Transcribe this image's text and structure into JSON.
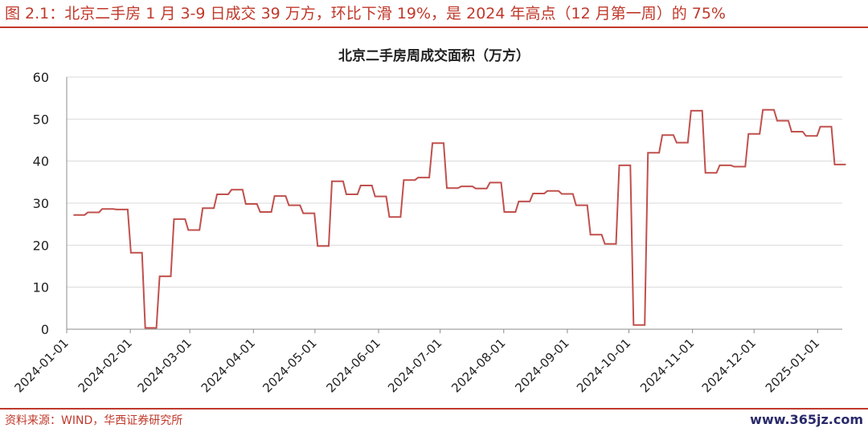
{
  "figure_title": "图 2.1：北京二手房 1 月 3-9 日成交 39 万方，环比下滑 19%，是 2024 年高点（12 月第一周）的 75%",
  "source": "资料来源：WIND，华西证券研究所",
  "watermark": "www.365jz.com",
  "colors": {
    "accent": "#c0392b",
    "line": "#c0504d",
    "grid": "#d9d9d9"
  },
  "chart_data": {
    "type": "line",
    "title": "北京二手房周成交面积（万方）",
    "xlabel": "",
    "ylabel": "",
    "ylim": [
      0,
      60
    ],
    "yticks": [
      0,
      10,
      20,
      30,
      40,
      50,
      60
    ],
    "xlim": [
      "2024-01-01",
      "2025-01-13"
    ],
    "xticks": [
      "2024-01-01",
      "2024-02-01",
      "2024-03-01",
      "2024-04-01",
      "2024-05-01",
      "2024-06-01",
      "2024-07-01",
      "2024-08-01",
      "2024-09-01",
      "2024-10-01",
      "2024-11-01",
      "2024-12-01",
      "2025-01-01"
    ],
    "grid": "horizontal",
    "series": [
      {
        "x": [
          "2024-01-07",
          "2024-01-14",
          "2024-01-21",
          "2024-01-28",
          "2024-02-04",
          "2024-02-11",
          "2024-02-18",
          "2024-02-25",
          "2024-03-03",
          "2024-03-10",
          "2024-03-17",
          "2024-03-24",
          "2024-03-31",
          "2024-04-07",
          "2024-04-14",
          "2024-04-21",
          "2024-04-28",
          "2024-05-05",
          "2024-05-12",
          "2024-05-19",
          "2024-05-26",
          "2024-06-02",
          "2024-06-09",
          "2024-06-16",
          "2024-06-23",
          "2024-06-30",
          "2024-07-07",
          "2024-07-14",
          "2024-07-21",
          "2024-07-28",
          "2024-08-04",
          "2024-08-11",
          "2024-08-18",
          "2024-08-25",
          "2024-09-01",
          "2024-09-08",
          "2024-09-15",
          "2024-09-22",
          "2024-09-29",
          "2024-10-06",
          "2024-10-13",
          "2024-10-20",
          "2024-10-27",
          "2024-11-03",
          "2024-11-10",
          "2024-11-17",
          "2024-11-24",
          "2024-12-01",
          "2024-12-08",
          "2024-12-15",
          "2024-12-22",
          "2024-12-29",
          "2025-01-05",
          "2025-01-12"
        ],
        "values": [
          27.2,
          27.8,
          28.6,
          28.5,
          18.2,
          0.3,
          12.6,
          26.2,
          23.6,
          28.8,
          32.1,
          33.2,
          29.8,
          27.9,
          31.7,
          29.5,
          27.6,
          19.8,
          35.2,
          32.1,
          34.2,
          31.6,
          26.7,
          35.5,
          36.1,
          44.3,
          33.6,
          34.0,
          33.5,
          34.9,
          27.9,
          30.4,
          32.3,
          32.9,
          32.2,
          29.5,
          22.5,
          20.3,
          39.0,
          1.0,
          42.0,
          46.2,
          44.4,
          52.0,
          37.2,
          39.0,
          38.7,
          46.5,
          52.2,
          49.6,
          47.0,
          46.0,
          48.2,
          39.2
        ]
      }
    ]
  }
}
